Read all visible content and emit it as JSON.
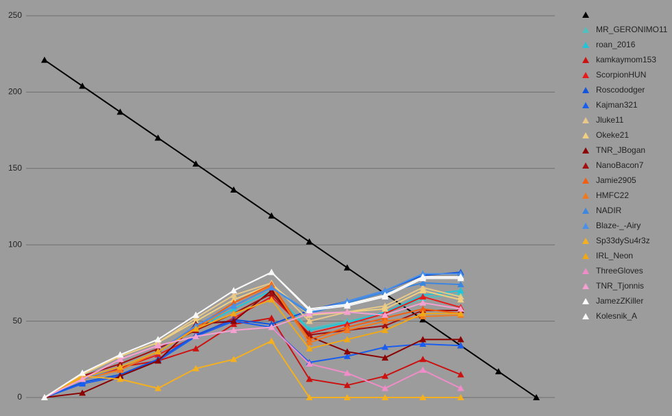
{
  "chart_data": {
    "type": "line",
    "categories": [
      null,
      null,
      null,
      null,
      null,
      null,
      null,
      null,
      null,
      null,
      null,
      null,
      null,
      null
    ],
    "ylim": [
      0,
      250
    ],
    "yticks": [
      0,
      50,
      100,
      150,
      200,
      250
    ],
    "grid": true,
    "legend": "right",
    "marker": "triangle",
    "series": [
      {
        "color": "#000000",
        "values": [
          221,
          204,
          187,
          170,
          153,
          136,
          119,
          102,
          85,
          68,
          51,
          34,
          17,
          0
        ]
      },
      {
        "name": "MR_GERONIMO11",
        "color": "#4fc0bf",
        "values": [
          0,
          12,
          20,
          30,
          45,
          58,
          70,
          45,
          50,
          55,
          65,
          68,
          null,
          null
        ]
      },
      {
        "name": "roan_2016",
        "color": "#22c4d8",
        "values": [
          0,
          12,
          20,
          30,
          45,
          58,
          70,
          44,
          49,
          56,
          67,
          70,
          null,
          null
        ]
      },
      {
        "name": "kamkaymom153",
        "color": "#cc1111",
        "values": [
          0,
          13,
          20,
          24,
          32,
          48,
          52,
          12,
          8,
          14,
          25,
          15,
          null,
          null
        ]
      },
      {
        "name": "ScorpionHUN",
        "color": "#e81b1b",
        "values": [
          0,
          13,
          19,
          28,
          40,
          52,
          66,
          42,
          48,
          55,
          66,
          59,
          null,
          null
        ]
      },
      {
        "name": "Roscododger",
        "color": "#1155dd",
        "values": [
          0,
          10,
          15,
          25,
          41,
          51,
          48,
          57,
          63,
          70,
          80,
          82,
          null,
          null
        ]
      },
      {
        "name": "Kajman321",
        "color": "#1a5ef0",
        "values": [
          0,
          9,
          14,
          24,
          40,
          50,
          46,
          23,
          27,
          33,
          35,
          34,
          null,
          null
        ]
      },
      {
        "name": "Jluke11",
        "color": "#e8c98a",
        "values": [
          0,
          15,
          27,
          36,
          52,
          67,
          75,
          50,
          56,
          60,
          72,
          66,
          null,
          null
        ]
      },
      {
        "name": "Okeke21",
        "color": "#f0d080",
        "values": [
          0,
          15,
          27,
          36,
          50,
          64,
          74,
          54,
          56,
          58,
          70,
          64,
          null,
          null
        ]
      },
      {
        "name": "TNR_JBogan",
        "color": "#8b0000",
        "values": [
          0,
          3,
          14,
          24,
          48,
          50,
          70,
          40,
          30,
          26,
          38,
          38,
          null,
          null
        ]
      },
      {
        "name": "NanoBacon7",
        "color": "#a01010",
        "values": [
          0,
          14,
          22,
          32,
          44,
          55,
          68,
          41,
          44,
          47,
          57,
          57,
          null,
          null
        ]
      },
      {
        "name": "Jamie2905",
        "color": "#f06010",
        "values": [
          0,
          12,
          18,
          30,
          46,
          62,
          74,
          38,
          46,
          52,
          58,
          55,
          null,
          null
        ]
      },
      {
        "name": "HMFC22",
        "color": "#f07a20",
        "values": [
          0,
          12,
          18,
          30,
          45,
          60,
          73,
          36,
          44,
          50,
          53,
          54,
          null,
          null
        ]
      },
      {
        "name": "NADIR",
        "color": "#3a86e0",
        "values": [
          0,
          12,
          20,
          30,
          47,
          60,
          72,
          55,
          62,
          69,
          75,
          74,
          null,
          null
        ]
      },
      {
        "name": "Blaze-_-Airy",
        "color": "#4a90e8",
        "values": [
          0,
          12,
          20,
          30,
          47,
          60,
          72,
          56,
          63,
          70,
          81,
          81,
          null,
          null
        ]
      },
      {
        "name": "Sp33dySu4r3z",
        "color": "#f5b020",
        "values": [
          0,
          14,
          12,
          6,
          19,
          25,
          37,
          0,
          0,
          0,
          0,
          0,
          null,
          null
        ]
      },
      {
        "name": "IRL_Neon",
        "color": "#f0a818",
        "values": [
          0,
          13,
          20,
          30,
          45,
          55,
          64,
          32,
          38,
          44,
          55,
          55,
          null,
          null
        ]
      },
      {
        "name": "ThreeGloves",
        "color": "#f08cc8",
        "values": [
          0,
          12,
          25,
          34,
          40,
          44,
          46,
          22,
          16,
          6,
          18,
          6,
          null,
          null
        ]
      },
      {
        "name": "TNR_Tjonnis",
        "color": "#f4a0d0",
        "values": [
          0,
          12,
          25,
          34,
          40,
          44,
          46,
          55,
          56,
          54,
          62,
          58,
          null,
          null
        ]
      },
      {
        "name": "JamezZKiller",
        "color": "#ffffff",
        "values": [
          0,
          16,
          28,
          38,
          54,
          70,
          82,
          58,
          61,
          67,
          79,
          79,
          null,
          null
        ]
      },
      {
        "name": "Kolesnik_A",
        "color": "#f8f8f8",
        "values": [
          0,
          16,
          28,
          38,
          54,
          70,
          82,
          57,
          60,
          66,
          78,
          78,
          null,
          null
        ]
      }
    ]
  }
}
